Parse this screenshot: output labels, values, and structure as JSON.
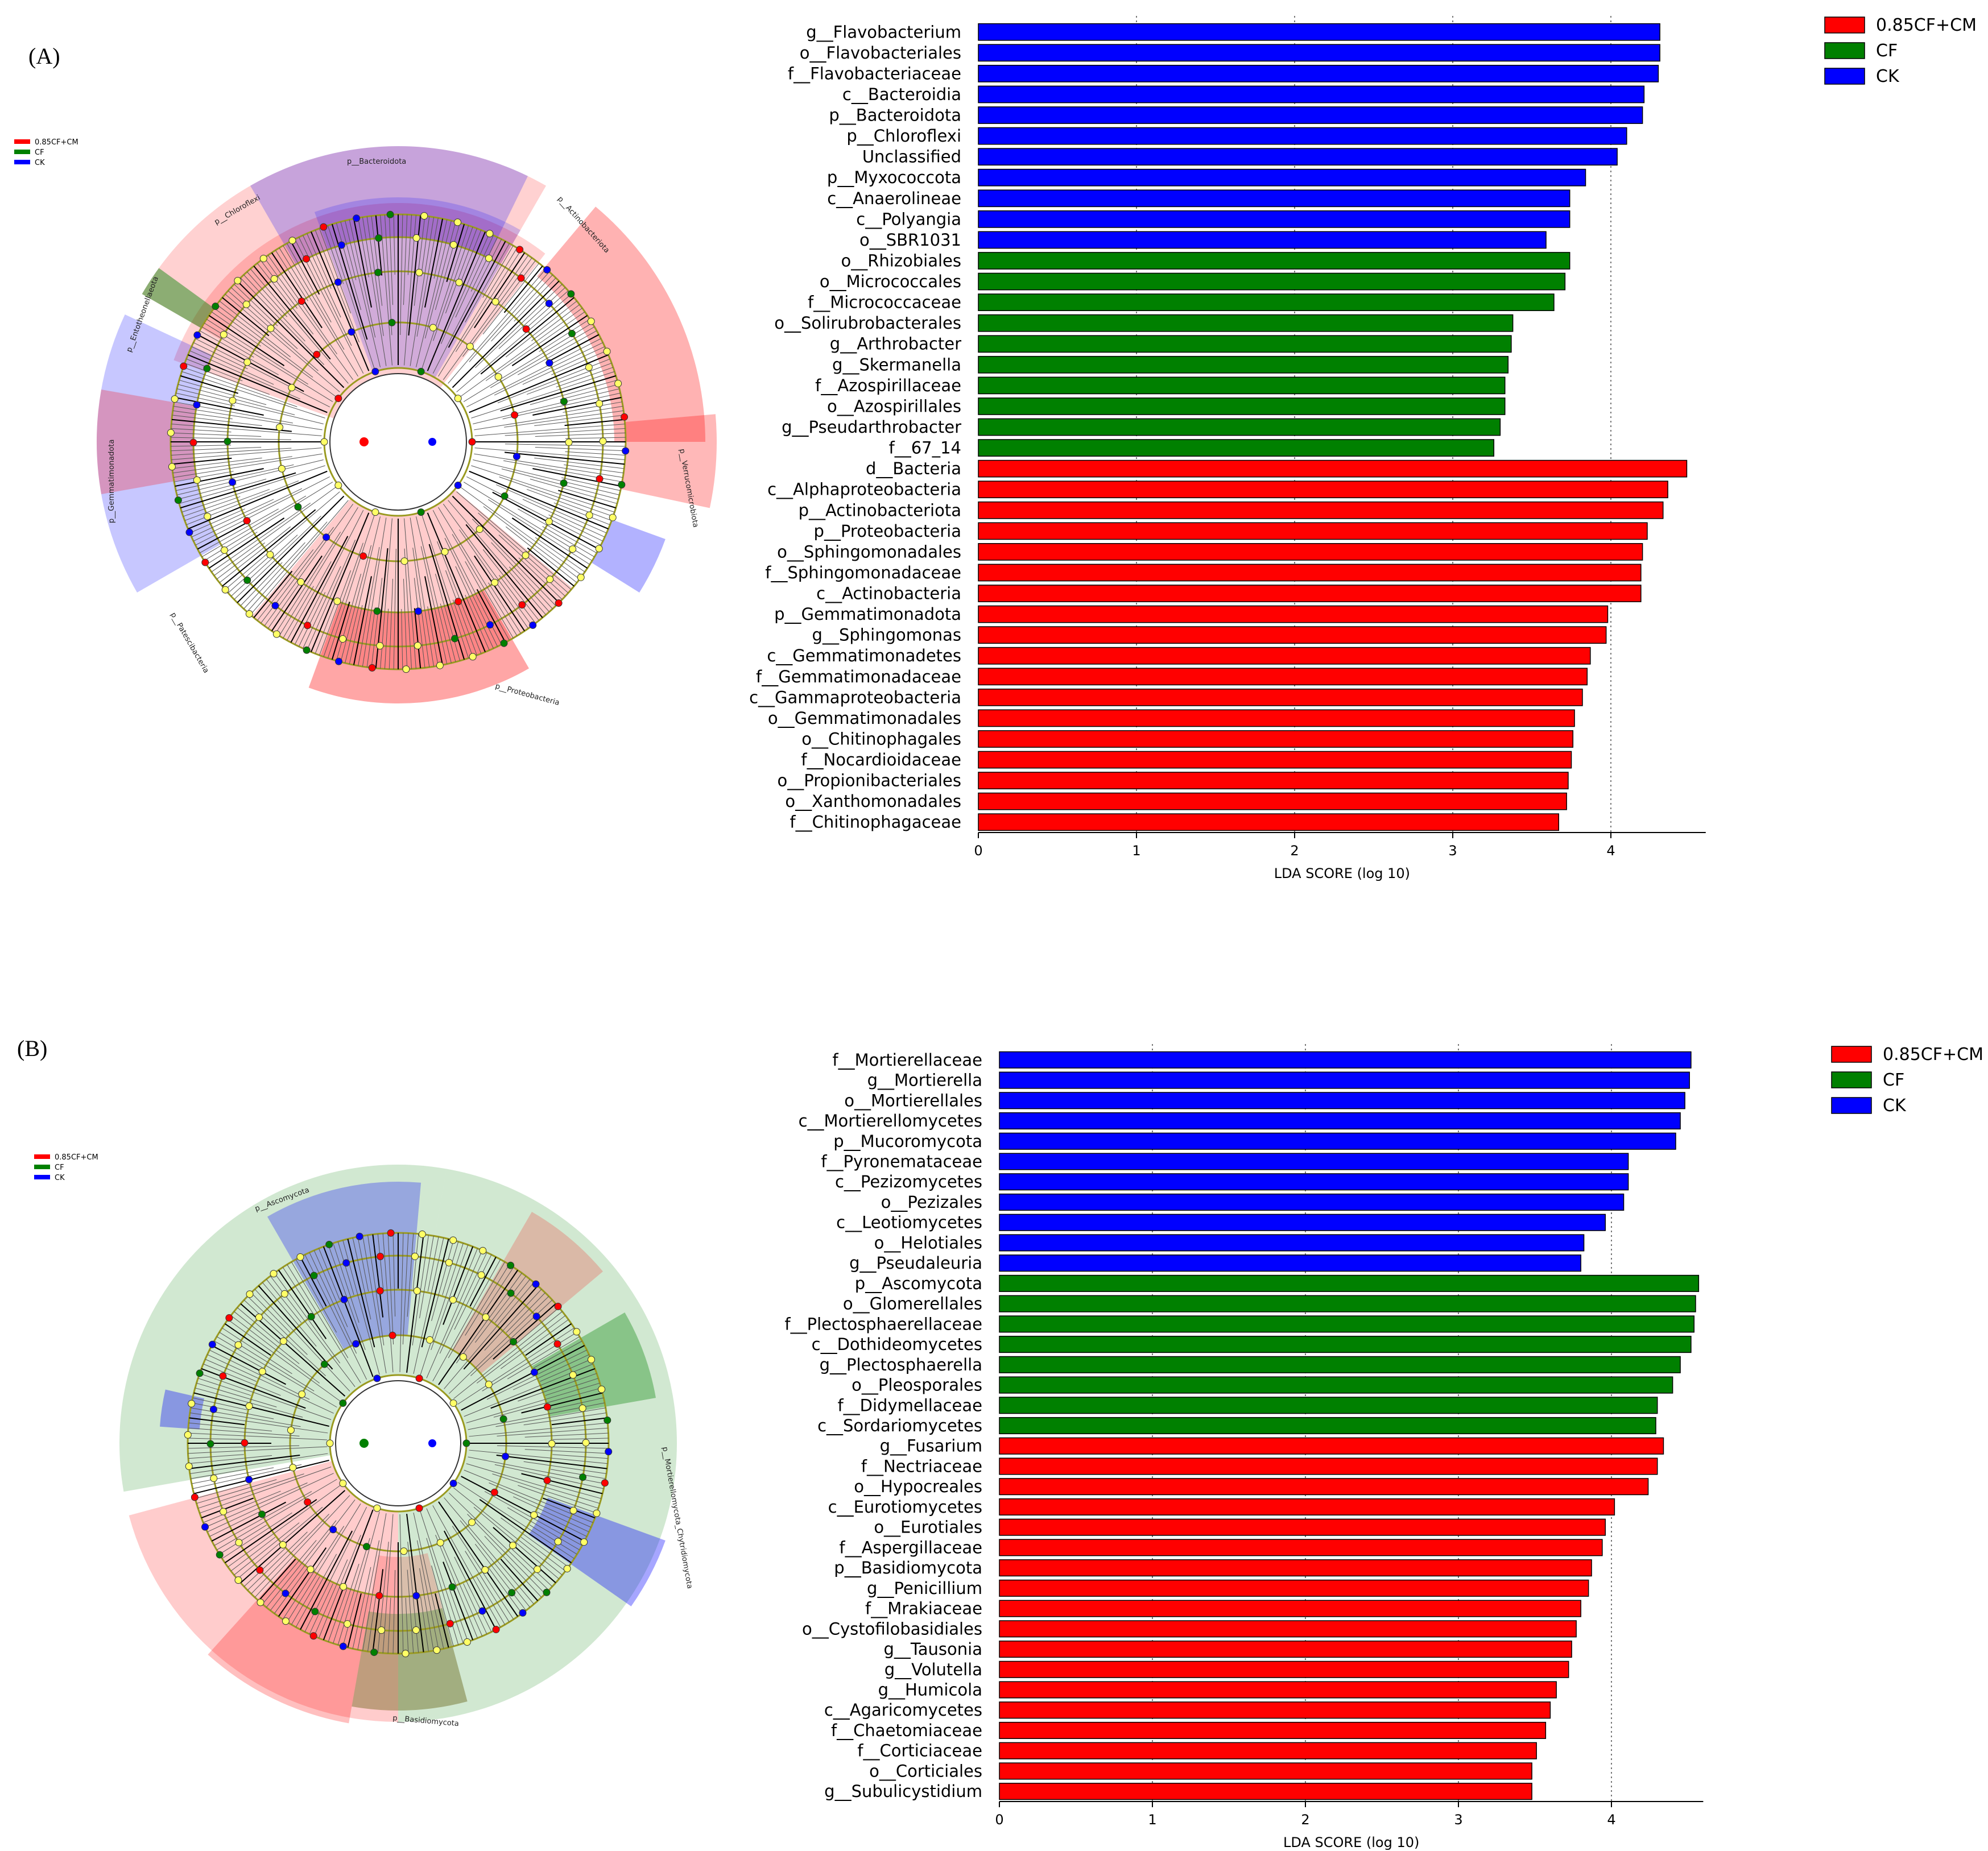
{
  "colors": {
    "0.85CF+CM": "#ff0000",
    "CF": "#008000",
    "CK": "#0000ff"
  },
  "panels": [
    {
      "label": "(A)",
      "legend": [
        "0.85CF+CM",
        "CF",
        "CK"
      ],
      "clado_labels": [
        "p__Bacteroidota",
        "p__Chloroflexi",
        "p__Actinobacteriota",
        "p__Entotheonellaeota",
        "p__Gemmatimonadota",
        "p__Verrucomicrobiota",
        "p__Proteobacteria",
        "p__Patescibacteria"
      ]
    },
    {
      "label": "(B)",
      "legend": [
        "0.85CF+CM",
        "CF",
        "CK"
      ],
      "clado_labels": [
        "p__Ascomycota",
        "p__Basidiomycota",
        "p__Mortierellomycota_Chytridiomycota"
      ]
    }
  ],
  "chart_data": [
    {
      "type": "bar",
      "orientation": "horizontal",
      "xlabel": "LDA SCORE (log 10)",
      "xlim": [
        0,
        4.6
      ],
      "xticks": [
        0,
        1,
        2,
        3,
        4
      ],
      "legend": [
        "0.85CF+CM",
        "CF",
        "CK"
      ],
      "bars": [
        {
          "label": "g__Flavobacterium",
          "value": 4.31,
          "group": "CK"
        },
        {
          "label": "o__Flavobacteriales",
          "value": 4.31,
          "group": "CK"
        },
        {
          "label": "f__Flavobacteriaceae",
          "value": 4.3,
          "group": "CK"
        },
        {
          "label": "c__Bacteroidia",
          "value": 4.21,
          "group": "CK"
        },
        {
          "label": "p__Bacteroidota",
          "value": 4.2,
          "group": "CK"
        },
        {
          "label": "p__Chloroflexi",
          "value": 4.1,
          "group": "CK"
        },
        {
          "label": "Unclassified",
          "value": 4.04,
          "group": "CK"
        },
        {
          "label": "p__Myxococcota",
          "value": 3.84,
          "group": "CK"
        },
        {
          "label": "c__Anaerolineae",
          "value": 3.74,
          "group": "CK"
        },
        {
          "label": "c__Polyangia",
          "value": 3.74,
          "group": "CK"
        },
        {
          "label": "o__SBR1031",
          "value": 3.59,
          "group": "CK"
        },
        {
          "label": "o__Rhizobiales",
          "value": 3.74,
          "group": "CF"
        },
        {
          "label": "o__Micrococcales",
          "value": 3.71,
          "group": "CF"
        },
        {
          "label": "f__Micrococcaceae",
          "value": 3.64,
          "group": "CF"
        },
        {
          "label": "o__Solirubrobacterales",
          "value": 3.38,
          "group": "CF"
        },
        {
          "label": "g__Arthrobacter",
          "value": 3.37,
          "group": "CF"
        },
        {
          "label": "g__Skermanella",
          "value": 3.35,
          "group": "CF"
        },
        {
          "label": "f__Azospirillaceae",
          "value": 3.33,
          "group": "CF"
        },
        {
          "label": "o__Azospirillales",
          "value": 3.33,
          "group": "CF"
        },
        {
          "label": "g__Pseudarthrobacter",
          "value": 3.3,
          "group": "CF"
        },
        {
          "label": "f__67_14",
          "value": 3.26,
          "group": "CF"
        },
        {
          "label": "d__Bacteria",
          "value": 4.48,
          "group": "0.85CF+CM"
        },
        {
          "label": "c__Alphaproteobacteria",
          "value": 4.36,
          "group": "0.85CF+CM"
        },
        {
          "label": "p__Actinobacteriota",
          "value": 4.33,
          "group": "0.85CF+CM"
        },
        {
          "label": "p__Proteobacteria",
          "value": 4.23,
          "group": "0.85CF+CM"
        },
        {
          "label": "o__Sphingomonadales",
          "value": 4.2,
          "group": "0.85CF+CM"
        },
        {
          "label": "f__Sphingomonadaceae",
          "value": 4.19,
          "group": "0.85CF+CM"
        },
        {
          "label": "c__Actinobacteria",
          "value": 4.19,
          "group": "0.85CF+CM"
        },
        {
          "label": "p__Gemmatimonadota",
          "value": 3.98,
          "group": "0.85CF+CM"
        },
        {
          "label": "g__Sphingomonas",
          "value": 3.97,
          "group": "0.85CF+CM"
        },
        {
          "label": "c__Gemmatimonadetes",
          "value": 3.87,
          "group": "0.85CF+CM"
        },
        {
          "label": "f__Gemmatimonadaceae",
          "value": 3.85,
          "group": "0.85CF+CM"
        },
        {
          "label": "c__Gammaproteobacteria",
          "value": 3.82,
          "group": "0.85CF+CM"
        },
        {
          "label": "o__Gemmatimonadales",
          "value": 3.77,
          "group": "0.85CF+CM"
        },
        {
          "label": "o__Chitinophagales",
          "value": 3.76,
          "group": "0.85CF+CM"
        },
        {
          "label": "f__Nocardioidaceae",
          "value": 3.75,
          "group": "0.85CF+CM"
        },
        {
          "label": "o__Propionibacteriales",
          "value": 3.73,
          "group": "0.85CF+CM"
        },
        {
          "label": "o__Xanthomonadales",
          "value": 3.72,
          "group": "0.85CF+CM"
        },
        {
          "label": "f__Chitinophagaceae",
          "value": 3.67,
          "group": "0.85CF+CM"
        }
      ]
    },
    {
      "type": "bar",
      "orientation": "horizontal",
      "xlabel": "LDA SCORE (log 10)",
      "xlim": [
        0,
        4.6
      ],
      "xticks": [
        0,
        1,
        2,
        3,
        4
      ],
      "legend": [
        "0.85CF+CM",
        "CF",
        "CK"
      ],
      "bars": [
        {
          "label": "f__Mortierellaceae",
          "value": 4.52,
          "group": "CK"
        },
        {
          "label": "g__Mortierella",
          "value": 4.51,
          "group": "CK"
        },
        {
          "label": "o__Mortierellales",
          "value": 4.48,
          "group": "CK"
        },
        {
          "label": "c__Mortierellomycetes",
          "value": 4.45,
          "group": "CK"
        },
        {
          "label": "p__Mucoromycota",
          "value": 4.42,
          "group": "CK"
        },
        {
          "label": "f__Pyronemataceae",
          "value": 4.11,
          "group": "CK"
        },
        {
          "label": "c__Pezizomycetes",
          "value": 4.11,
          "group": "CK"
        },
        {
          "label": "o__Pezizales",
          "value": 4.08,
          "group": "CK"
        },
        {
          "label": "c__Leotiomycetes",
          "value": 3.96,
          "group": "CK"
        },
        {
          "label": "o__Helotiales",
          "value": 3.82,
          "group": "CK"
        },
        {
          "label": "g__Pseudaleuria",
          "value": 3.8,
          "group": "CK"
        },
        {
          "label": "p__Ascomycota",
          "value": 4.57,
          "group": "CF"
        },
        {
          "label": "o__Glomerellales",
          "value": 4.55,
          "group": "CF"
        },
        {
          "label": "f__Plectosphaerellaceae",
          "value": 4.54,
          "group": "CF"
        },
        {
          "label": "c__Dothideomycetes",
          "value": 4.52,
          "group": "CF"
        },
        {
          "label": "g__Plectosphaerella",
          "value": 4.45,
          "group": "CF"
        },
        {
          "label": "o__Pleosporales",
          "value": 4.4,
          "group": "CF"
        },
        {
          "label": "f__Didymellaceae",
          "value": 4.3,
          "group": "CF"
        },
        {
          "label": "c__Sordariomycetes",
          "value": 4.29,
          "group": "CF"
        },
        {
          "label": "g__Fusarium",
          "value": 4.34,
          "group": "0.85CF+CM"
        },
        {
          "label": "f__Nectriaceae",
          "value": 4.3,
          "group": "0.85CF+CM"
        },
        {
          "label": "o__Hypocreales",
          "value": 4.24,
          "group": "0.85CF+CM"
        },
        {
          "label": "c__Eurotiomycetes",
          "value": 4.02,
          "group": "0.85CF+CM"
        },
        {
          "label": "o__Eurotiales",
          "value": 3.96,
          "group": "0.85CF+CM"
        },
        {
          "label": "f__Aspergillaceae",
          "value": 3.94,
          "group": "0.85CF+CM"
        },
        {
          "label": "p__Basidiomycota",
          "value": 3.87,
          "group": "0.85CF+CM"
        },
        {
          "label": "g__Penicillium",
          "value": 3.85,
          "group": "0.85CF+CM"
        },
        {
          "label": "f__Mrakiaceae",
          "value": 3.8,
          "group": "0.85CF+CM"
        },
        {
          "label": "o__Cystofilobasidiales",
          "value": 3.77,
          "group": "0.85CF+CM"
        },
        {
          "label": "g__Tausonia",
          "value": 3.74,
          "group": "0.85CF+CM"
        },
        {
          "label": "g__Volutella",
          "value": 3.72,
          "group": "0.85CF+CM"
        },
        {
          "label": "g__Humicola",
          "value": 3.64,
          "group": "0.85CF+CM"
        },
        {
          "label": "c__Agaricomycetes",
          "value": 3.6,
          "group": "0.85CF+CM"
        },
        {
          "label": "f__Chaetomiaceae",
          "value": 3.57,
          "group": "0.85CF+CM"
        },
        {
          "label": "f__Corticiaceae",
          "value": 3.51,
          "group": "0.85CF+CM"
        },
        {
          "label": "o__Corticiales",
          "value": 3.48,
          "group": "0.85CF+CM"
        },
        {
          "label": "g__Subulicystidium",
          "value": 3.48,
          "group": "0.85CF+CM"
        }
      ]
    }
  ]
}
